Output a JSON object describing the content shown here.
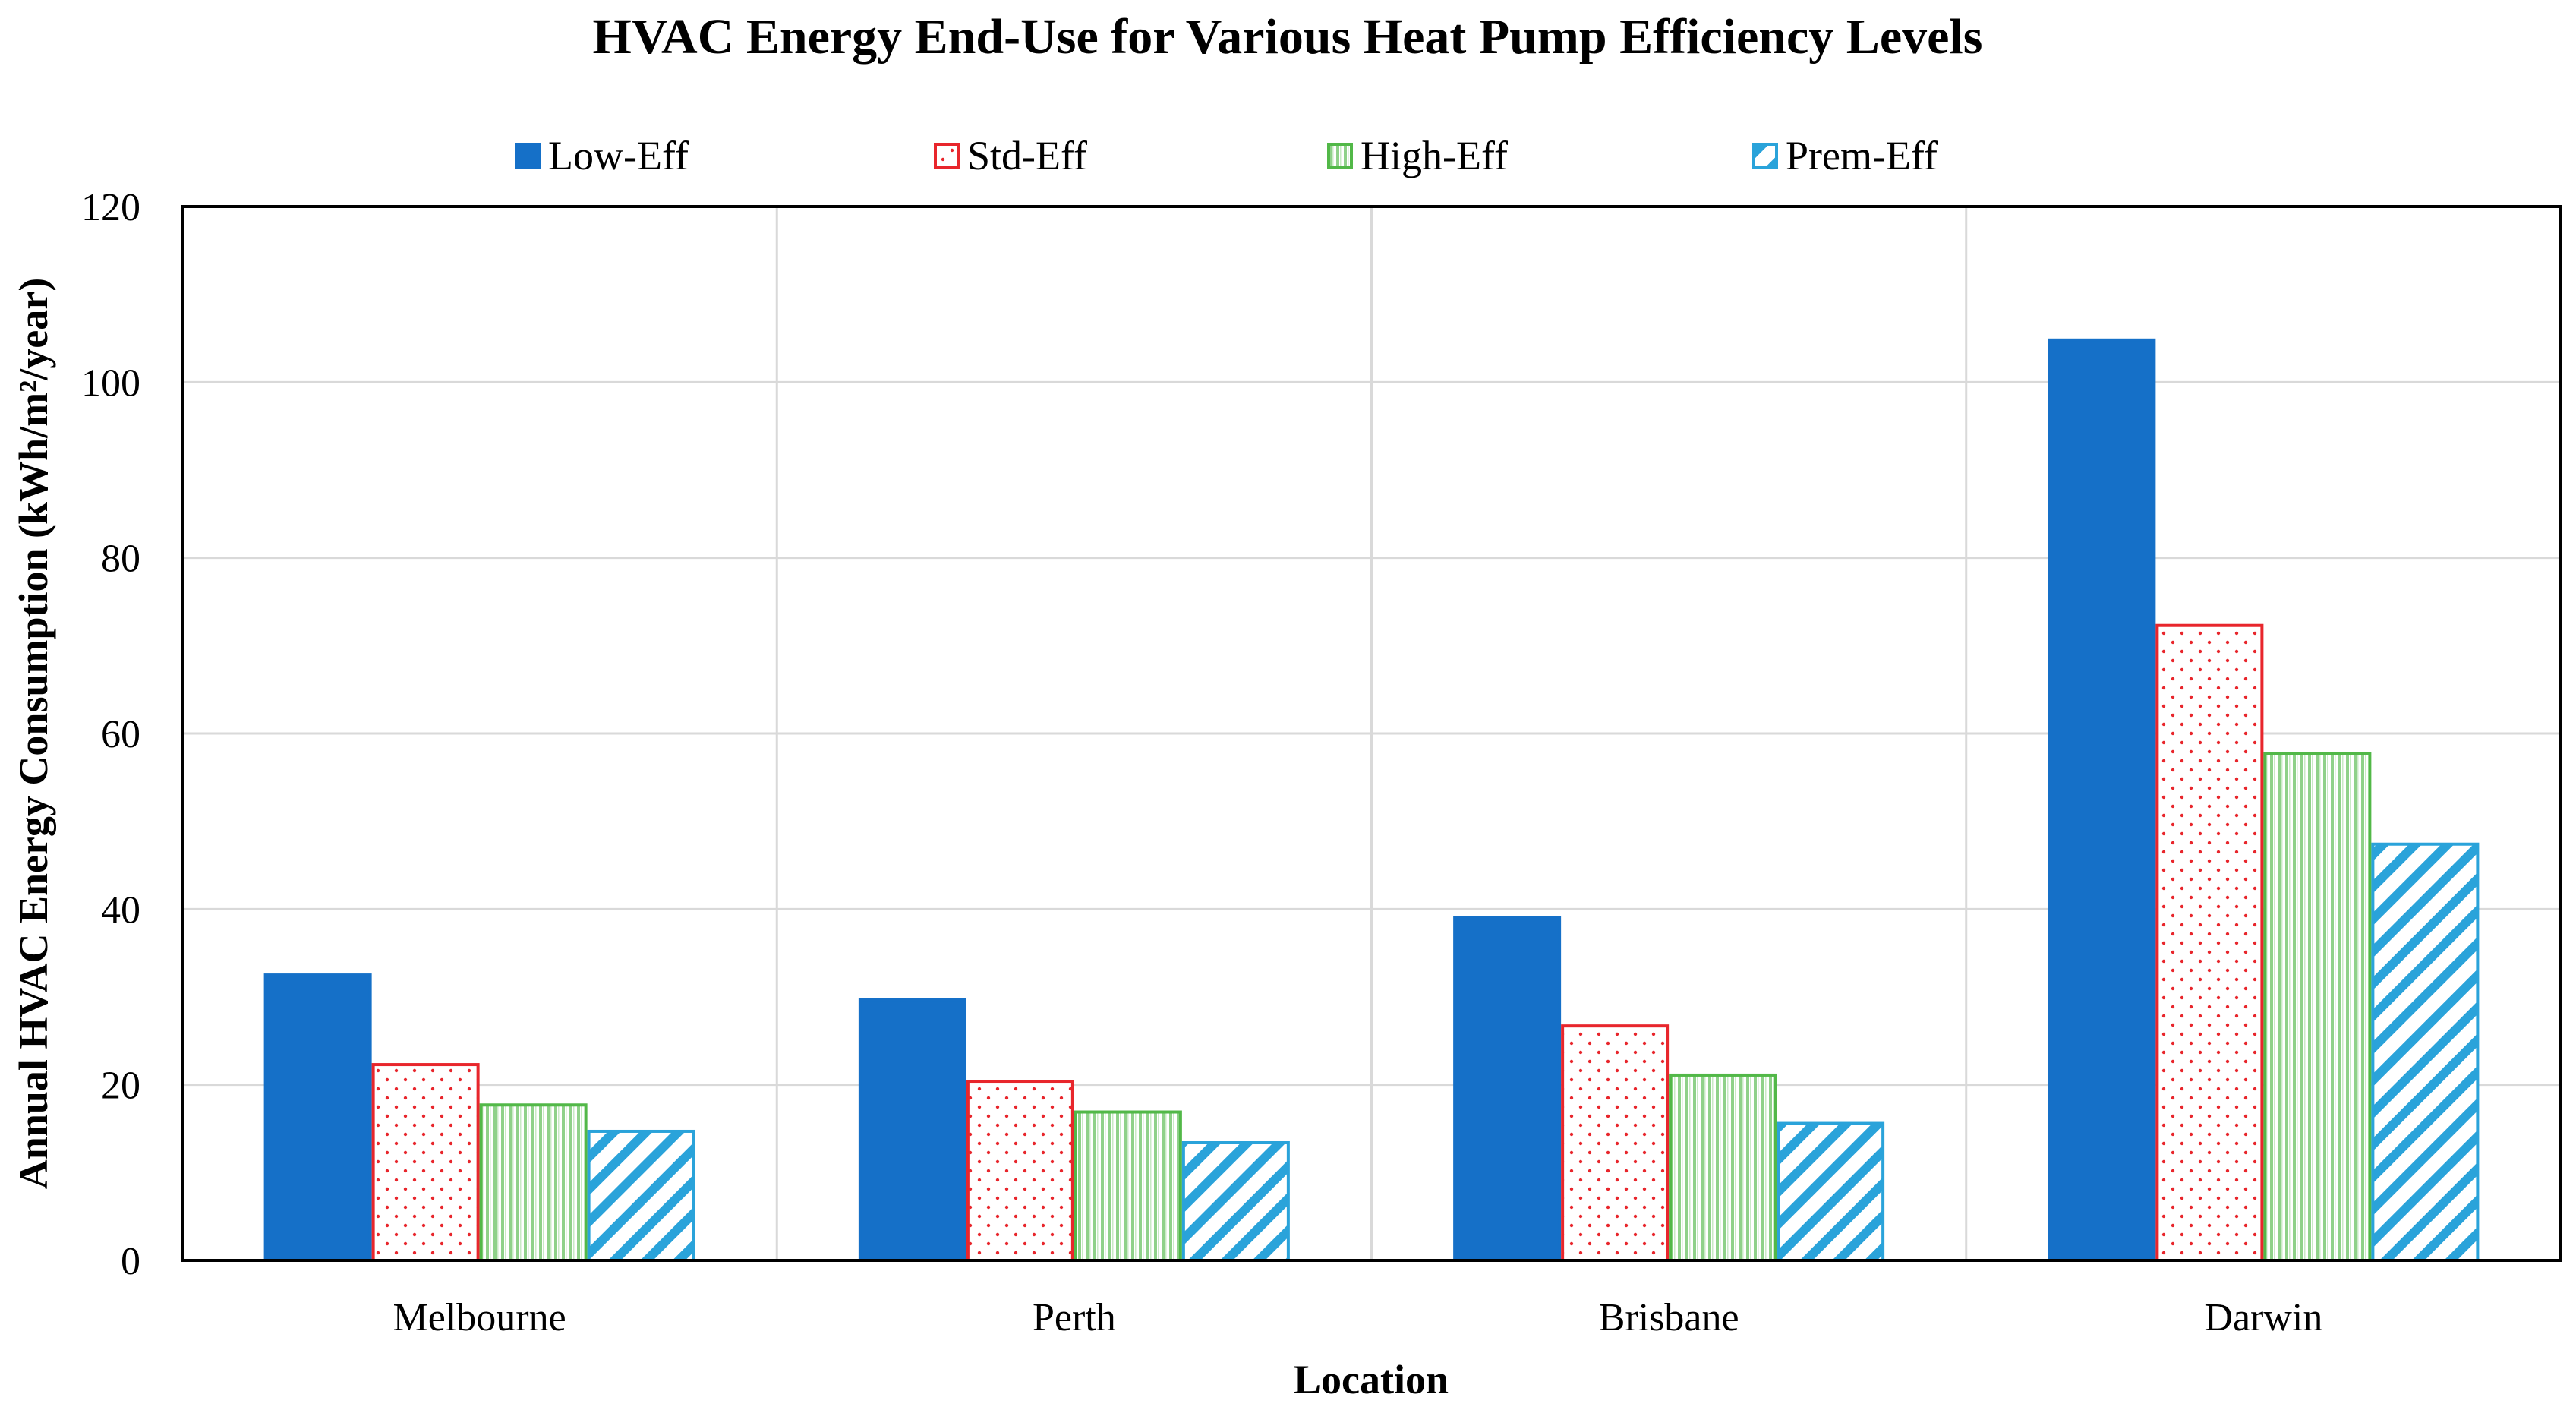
{
  "chart_data": {
    "type": "bar",
    "title": "HVAC Energy End-Use for Various Heat Pump Efficiency Levels",
    "xlabel": "Location",
    "ylabel": "Annual HVAC Energy Consumption (kWh/m²/year)",
    "categories": [
      "Melbourne",
      "Perth",
      "Brisbane",
      "Darwin"
    ],
    "ylim": [
      0,
      120
    ],
    "yticks": [
      0,
      20,
      40,
      60,
      80,
      100,
      120
    ],
    "grid": true,
    "legend_position": "top",
    "series": [
      {
        "name": "Low-Eff",
        "values": [
          32.5,
          29.7,
          39.0,
          104.8
        ],
        "color": "#1570C8",
        "pattern": "solid"
      },
      {
        "name": "Std-Eff",
        "values": [
          22.3,
          20.4,
          26.7,
          72.3
        ],
        "color": "#E8262C",
        "pattern": "dots"
      },
      {
        "name": "High-Eff",
        "values": [
          17.7,
          16.9,
          21.1,
          57.7
        ],
        "color": "#52B848",
        "pattern": "vertical-lines"
      },
      {
        "name": "Prem-Eff",
        "values": [
          14.7,
          13.4,
          15.6,
          47.4
        ],
        "color": "#2AA3DA",
        "pattern": "diagonal-hatch"
      }
    ]
  }
}
